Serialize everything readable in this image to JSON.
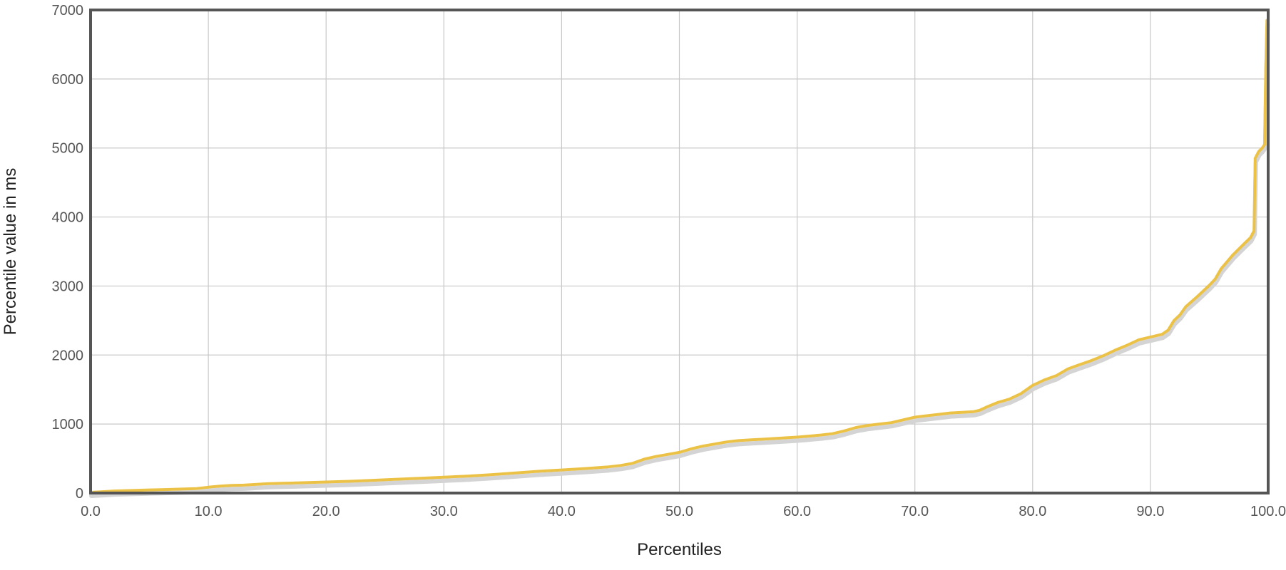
{
  "chart_data": {
    "type": "line",
    "title": "",
    "xlabel": "Percentiles",
    "ylabel": "Percentile value in ms",
    "xlim": [
      0,
      100
    ],
    "ylim": [
      0,
      7000
    ],
    "x_ticks": [
      "0.0",
      "10.0",
      "20.0",
      "30.0",
      "40.0",
      "50.0",
      "60.0",
      "70.0",
      "80.0",
      "90.0",
      "100.0"
    ],
    "y_ticks": [
      "0",
      "1000",
      "2000",
      "3000",
      "4000",
      "5000",
      "6000",
      "7000"
    ],
    "grid": true,
    "legend": "none",
    "colors": {
      "line": "#ecc246",
      "shadow": "#d4d4d4",
      "frame": "#555555",
      "grid": "#c8c8c8"
    },
    "series": [
      {
        "x": [
          0,
          1,
          2,
          3,
          4,
          5,
          6,
          7,
          8,
          9,
          10,
          11,
          12,
          13,
          14,
          15,
          16,
          17,
          18,
          19,
          20,
          22,
          24,
          26,
          28,
          30,
          32,
          34,
          36,
          38,
          40,
          42,
          44,
          45,
          46,
          47,
          48,
          49,
          50,
          51,
          52,
          53,
          54,
          55,
          56,
          57,
          58,
          59,
          60,
          61,
          62,
          63,
          64,
          65,
          66,
          67,
          68,
          69,
          70,
          71,
          72,
          73,
          74,
          75,
          75.5,
          76,
          77,
          78,
          79,
          80,
          81,
          82,
          83,
          84,
          85,
          86,
          87,
          88,
          89,
          90,
          91,
          91.5,
          92,
          92.5,
          93,
          94,
          95,
          95.5,
          96,
          97,
          98,
          98.5,
          98.8,
          98.9,
          99.2,
          99.5,
          99.7,
          99.8,
          99.9
        ],
        "values": [
          10,
          20,
          30,
          35,
          40,
          45,
          50,
          55,
          60,
          65,
          85,
          100,
          110,
          115,
          125,
          135,
          140,
          145,
          150,
          155,
          160,
          170,
          185,
          200,
          215,
          230,
          245,
          265,
          290,
          315,
          335,
          355,
          380,
          400,
          430,
          490,
          530,
          560,
          590,
          640,
          680,
          710,
          740,
          760,
          770,
          780,
          790,
          800,
          810,
          825,
          840,
          860,
          900,
          950,
          980,
          1000,
          1020,
          1060,
          1100,
          1120,
          1140,
          1160,
          1170,
          1180,
          1200,
          1240,
          1310,
          1360,
          1440,
          1560,
          1640,
          1700,
          1800,
          1860,
          1920,
          1990,
          2070,
          2140,
          2220,
          2260,
          2300,
          2360,
          2500,
          2580,
          2700,
          2850,
          3010,
          3100,
          3250,
          3450,
          3620,
          3700,
          3800,
          4850,
          4950,
          5000,
          5050,
          6200,
          6850
        ]
      }
    ]
  }
}
